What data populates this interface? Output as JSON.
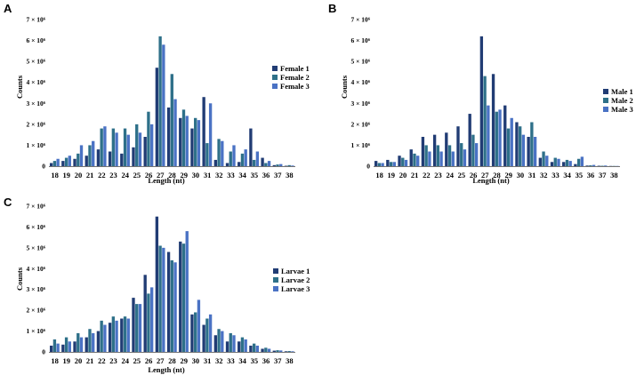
{
  "colors": [
    "#213c74",
    "#2e7089",
    "#4a72c4"
  ],
  "chart_data": [
    {
      "panel": "A",
      "type": "bar",
      "xlabel": "Length (nt)",
      "ylabel": "Counts",
      "ylim": [
        0,
        7000000
      ],
      "ytick_labels": [
        "0",
        "1 × 10⁶",
        "2 × 10⁶",
        "3 × 10⁶",
        "4 × 10⁶",
        "5 × 10⁶",
        "6 × 10⁶",
        "7 × 10⁶"
      ],
      "categories": [
        "18",
        "19",
        "20",
        "21",
        "22",
        "23",
        "24",
        "25",
        "26",
        "27",
        "28",
        "29",
        "30",
        "31",
        "32",
        "33",
        "34",
        "35",
        "36",
        "37",
        "38"
      ],
      "series": [
        {
          "name": "Female 1",
          "values": [
            150000,
            250000,
            350000,
            500000,
            800000,
            700000,
            600000,
            900000,
            1400000,
            4700000,
            2800000,
            2300000,
            1800000,
            3300000,
            300000,
            150000,
            200000,
            1800000,
            400000,
            50000,
            20000
          ]
        },
        {
          "name": "Female 2",
          "values": [
            250000,
            400000,
            600000,
            1000000,
            1800000,
            1800000,
            1800000,
            2000000,
            2600000,
            6200000,
            4400000,
            2700000,
            2300000,
            1100000,
            1300000,
            700000,
            600000,
            300000,
            150000,
            80000,
            50000
          ]
        },
        {
          "name": "Female 3",
          "values": [
            350000,
            500000,
            1000000,
            1200000,
            1900000,
            1600000,
            1500000,
            1600000,
            2000000,
            5800000,
            3200000,
            2400000,
            2200000,
            3000000,
            1200000,
            1000000,
            800000,
            700000,
            250000,
            100000,
            30000
          ]
        }
      ]
    },
    {
      "panel": "B",
      "type": "bar",
      "xlabel": "Length (nt)",
      "ylabel": "Counts",
      "ylim": [
        0,
        7000000
      ],
      "ytick_labels": [
        "0",
        "1 × 10⁶",
        "2 × 10⁶",
        "3 × 10⁶",
        "4 × 10⁶",
        "5 × 10⁶",
        "6 × 10⁶",
        "7 × 10⁶"
      ],
      "categories": [
        "18",
        "19",
        "20",
        "21",
        "22",
        "23",
        "24",
        "25",
        "26",
        "27",
        "28",
        "29",
        "30",
        "31",
        "32",
        "33",
        "34",
        "35",
        "36",
        "37",
        "38"
      ],
      "series": [
        {
          "name": "Male 1",
          "values": [
            250000,
            300000,
            500000,
            800000,
            1400000,
            1500000,
            1600000,
            1900000,
            2500000,
            6200000,
            4400000,
            2900000,
            2100000,
            1400000,
            400000,
            200000,
            200000,
            100000,
            30000,
            20000,
            10000
          ]
        },
        {
          "name": "Male 2",
          "values": [
            150000,
            200000,
            400000,
            600000,
            1000000,
            1000000,
            1000000,
            1100000,
            1500000,
            4300000,
            2600000,
            1800000,
            1900000,
            2100000,
            700000,
            400000,
            300000,
            350000,
            40000,
            20000,
            10000
          ]
        },
        {
          "name": "Male 3",
          "values": [
            150000,
            200000,
            300000,
            500000,
            700000,
            700000,
            700000,
            800000,
            1100000,
            2900000,
            2700000,
            2300000,
            1500000,
            1400000,
            500000,
            350000,
            250000,
            450000,
            60000,
            30000,
            10000
          ]
        }
      ]
    },
    {
      "panel": "C",
      "type": "bar",
      "xlabel": "Length (nt)",
      "ylabel": "Counts",
      "ylim": [
        0,
        7000000
      ],
      "ytick_labels": [
        "0",
        "1 × 10⁶",
        "2 × 10⁶",
        "3 × 10⁶",
        "4 × 10⁶",
        "5 × 10⁶",
        "6 × 10⁶",
        "7 × 10⁶"
      ],
      "categories": [
        "18",
        "19",
        "20",
        "21",
        "22",
        "23",
        "24",
        "25",
        "26",
        "27",
        "28",
        "29",
        "30",
        "31",
        "32",
        "33",
        "34",
        "35",
        "36",
        "37",
        "38"
      ],
      "series": [
        {
          "name": "Larvae 1",
          "values": [
            300000,
            350000,
            500000,
            700000,
            1000000,
            1400000,
            1600000,
            2600000,
            3700000,
            6500000,
            4800000,
            5300000,
            1800000,
            1300000,
            800000,
            500000,
            500000,
            300000,
            150000,
            60000,
            30000
          ]
        },
        {
          "name": "Larvae 2",
          "values": [
            600000,
            700000,
            900000,
            1100000,
            1500000,
            1700000,
            1700000,
            2300000,
            2800000,
            5100000,
            4400000,
            5200000,
            1900000,
            1600000,
            1100000,
            900000,
            700000,
            400000,
            200000,
            80000,
            40000
          ]
        },
        {
          "name": "Larvae 3",
          "values": [
            400000,
            500000,
            700000,
            900000,
            1300000,
            1500000,
            1600000,
            2300000,
            3100000,
            5000000,
            4300000,
            5800000,
            2500000,
            1800000,
            1000000,
            800000,
            600000,
            300000,
            150000,
            70000,
            30000
          ]
        }
      ]
    }
  ]
}
